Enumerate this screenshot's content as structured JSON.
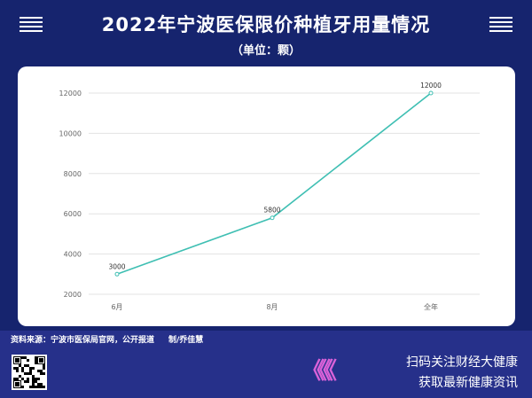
{
  "title": "2022年宁波医保限价种植牙用量情况",
  "subtitle": "（单位：颗）",
  "chart_data": {
    "type": "line",
    "categories": [
      "6月",
      "8月",
      "全年"
    ],
    "values": [
      3000,
      5800,
      12000
    ],
    "data_labels": [
      "3000",
      "5800",
      "12000"
    ],
    "ylim": [
      2000,
      12000
    ],
    "yticks": [
      2000,
      4000,
      6000,
      8000,
      10000,
      12000
    ],
    "grid": true,
    "line_color": "#3fbfb3"
  },
  "footer": {
    "source": "资料来源：宁波市医保局官网，公开报道",
    "author": "制/乔佳慧",
    "promo_line1": "扫码关注财经大健康",
    "promo_line2": "获取最新健康资讯",
    "arrows": "《《《"
  },
  "colors": {
    "background": "#16246e",
    "footer": "#26308a",
    "accent": "#d861d8"
  }
}
